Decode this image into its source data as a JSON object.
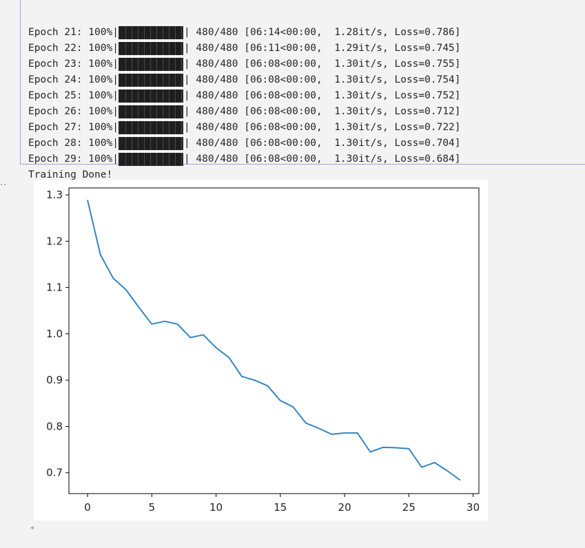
{
  "output": {
    "log_lines": [
      {
        "prefix": "Epoch 21: 100%|",
        "suffix": "| 480/480 [06:14<00:00,  1.28it/s, Loss=0.786]"
      },
      {
        "prefix": "Epoch 22: 100%|",
        "suffix": "| 480/480 [06:11<00:00,  1.29it/s, Loss=0.745]"
      },
      {
        "prefix": "Epoch 23: 100%|",
        "suffix": "| 480/480 [06:08<00:00,  1.30it/s, Loss=0.755]"
      },
      {
        "prefix": "Epoch 24: 100%|",
        "suffix": "| 480/480 [06:08<00:00,  1.30it/s, Loss=0.754]"
      },
      {
        "prefix": "Epoch 25: 100%|",
        "suffix": "| 480/480 [06:08<00:00,  1.30it/s, Loss=0.752]"
      },
      {
        "prefix": "Epoch 26: 100%|",
        "suffix": "| 480/480 [06:08<00:00,  1.30it/s, Loss=0.712]"
      },
      {
        "prefix": "Epoch 27: 100%|",
        "suffix": "| 480/480 [06:08<00:00,  1.30it/s, Loss=0.722]"
      },
      {
        "prefix": "Epoch 28: 100%|",
        "suffix": "| 480/480 [06:08<00:00,  1.30it/s, Loss=0.704]"
      },
      {
        "prefix": "Epoch 29: 100%|",
        "suffix": "| 480/480 [06:08<00:00,  1.30it/s, Loss=0.684]"
      }
    ],
    "done_text": "Training Done!",
    "progress_fraction": 1.0,
    "ellipsis": "··",
    "scroll_arrow": "◂"
  },
  "chart_data": {
    "type": "line",
    "title": "",
    "xlabel": "",
    "ylabel": "",
    "xlim": [
      -1.45,
      30.45
    ],
    "ylim": [
      0.655,
      1.315
    ],
    "xticks": [
      0,
      5,
      10,
      15,
      20,
      25,
      30
    ],
    "xtick_labels": [
      "0",
      "5",
      "10",
      "15",
      "20",
      "25",
      "30"
    ],
    "yticks": [
      0.7,
      0.8,
      0.9,
      1.0,
      1.1,
      1.2,
      1.3
    ],
    "ytick_labels": [
      "0.7",
      "0.8",
      "0.9",
      "1.0",
      "1.1",
      "1.2",
      "1.3"
    ],
    "grid": false,
    "series": [
      {
        "color": "#3584bf",
        "x": [
          0,
          1,
          2,
          3,
          4,
          5,
          6,
          7,
          8,
          9,
          10,
          11,
          12,
          13,
          14,
          15,
          16,
          17,
          18,
          19,
          20,
          21,
          22,
          23,
          24,
          25,
          26,
          27,
          28,
          29
        ],
        "y": [
          1.289,
          1.171,
          1.12,
          1.095,
          1.057,
          1.021,
          1.027,
          1.021,
          0.992,
          0.998,
          0.97,
          0.949,
          0.908,
          0.9,
          0.888,
          0.856,
          0.842,
          0.807,
          0.796,
          0.783,
          0.786,
          0.786,
          0.745,
          0.755,
          0.754,
          0.752,
          0.712,
          0.722,
          0.704,
          0.684
        ]
      }
    ]
  }
}
